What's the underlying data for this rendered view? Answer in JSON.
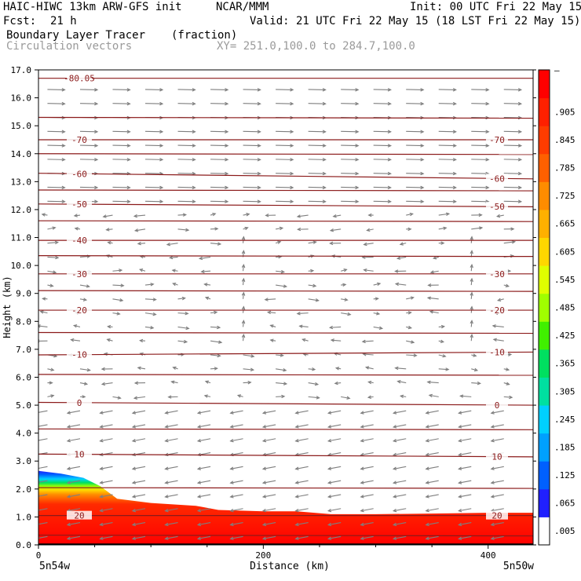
{
  "header": {
    "model": "HAIC-HIWC 13km ARW-GFS init",
    "org": "NCAR/MMM",
    "init": "Init: 00 UTC Fri 22 May 15",
    "fcst_label": "Fcst:",
    "fcst_value": "21 h",
    "valid": "Valid: 21 UTC Fri 22 May 15 (18 LST Fri 22 May 15)",
    "field_name": "Boundary Layer Tracer",
    "field_units": "(fraction)",
    "overlay_name": "Circulation vectors",
    "xsection": "XY= 251.0,100.0 to 284.7,100.0"
  },
  "colors": {
    "contour": "#8b1a1a",
    "vector": "#7f7f7f"
  },
  "chart_data": {
    "type": "heatmap",
    "xlabel": "Distance (km)",
    "ylabel": "Height (km)",
    "xlim": [
      0,
      440
    ],
    "ylim": [
      0,
      17
    ],
    "x_ticks": [
      "0",
      "200",
      "400"
    ],
    "x_tick_values": [
      0,
      200,
      400
    ],
    "y_ticks": [
      "0.0",
      "1.0",
      "2.0",
      "3.0",
      "4.0",
      "5.0",
      "6.0",
      "7.0",
      "8.0",
      "9.0",
      "10.0",
      "11.0",
      "12.0",
      "13.0",
      "14.0",
      "15.0",
      "16.0",
      "17.0"
    ],
    "left_endpoint": "5n54w",
    "right_endpoint": "5n50w",
    "colorbar": {
      "labels": [
        ".005",
        ".065",
        ".125",
        ".185",
        ".245",
        ".305",
        ".365",
        ".425",
        ".485",
        ".545",
        ".605",
        ".665",
        ".725",
        ".785",
        ".845",
        ".905"
      ],
      "label_values": [
        0.005,
        0.065,
        0.125,
        0.185,
        0.245,
        0.305,
        0.365,
        0.425,
        0.485,
        0.545,
        0.605,
        0.665,
        0.725,
        0.785,
        0.845,
        0.905
      ],
      "top_label": "–"
    },
    "tracer_top_km": [
      {
        "x": 0,
        "z": 2.65
      },
      {
        "x": 20,
        "z": 2.55
      },
      {
        "x": 40,
        "z": 2.4
      },
      {
        "x": 55,
        "z": 2.1
      },
      {
        "x": 70,
        "z": 1.65
      },
      {
        "x": 100,
        "z": 1.5
      },
      {
        "x": 140,
        "z": 1.4
      },
      {
        "x": 160,
        "z": 1.25
      },
      {
        "x": 200,
        "z": 1.2
      },
      {
        "x": 230,
        "z": 1.2
      },
      {
        "x": 260,
        "z": 1.1
      },
      {
        "x": 300,
        "z": 1.1
      },
      {
        "x": 350,
        "z": 1.12
      },
      {
        "x": 400,
        "z": 1.15
      },
      {
        "x": 440,
        "z": 1.15
      }
    ],
    "isotherms": [
      {
        "label": "-80.05",
        "z_left": 16.7,
        "z_right": 16.7,
        "label_left": true,
        "label_right": false
      },
      {
        "label": "-70",
        "z_left": 14.5,
        "z_right": 14.5,
        "label_left": true,
        "label_right": true
      },
      {
        "label": "-60",
        "z_left": 13.3,
        "z_right": 13.1,
        "label_left": true,
        "label_right": true
      },
      {
        "label": "-50",
        "z_left": 12.2,
        "z_right": 12.1,
        "label_left": true,
        "label_right": true
      },
      {
        "label": "-40",
        "z_left": 10.9,
        "z_right": 10.9,
        "label_left": true,
        "label_right": false
      },
      {
        "label": "-30",
        "z_left": 9.7,
        "z_right": 9.7,
        "label_left": true,
        "label_right": true
      },
      {
        "label": "-20",
        "z_left": 8.4,
        "z_right": 8.4,
        "label_left": true,
        "label_right": true
      },
      {
        "label": "-10",
        "z_left": 6.8,
        "z_right": 6.9,
        "label_left": true,
        "label_right": true
      },
      {
        "label": "0",
        "z_left": 5.1,
        "z_right": 5.0,
        "label_left": true,
        "label_right": true
      },
      {
        "label": "10",
        "z_left": 3.25,
        "z_right": 3.15,
        "label_left": true,
        "label_right": true
      },
      {
        "label": "20",
        "z_left": 1.05,
        "z_right": 1.05,
        "label_left": true,
        "label_right": true
      }
    ],
    "unlabeled_isotherms_z": [
      15.3,
      14.0,
      12.7,
      11.6,
      10.35,
      9.1,
      7.6,
      6.1,
      4.15,
      2.05,
      0.35
    ]
  }
}
